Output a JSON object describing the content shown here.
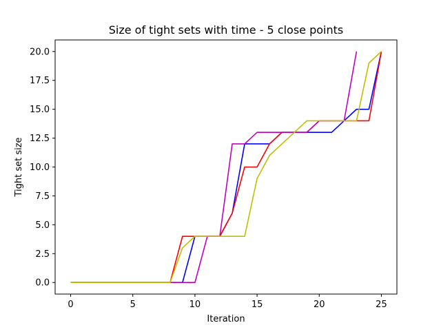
{
  "chart_data": {
    "type": "line",
    "title": "Size of tight sets with time - 5 close points",
    "xlabel": "Iteration",
    "ylabel": "Tight set size",
    "xlim": [
      -1.25,
      26.25
    ],
    "ylim": [
      -1.0,
      21.0
    ],
    "xticks": [
      0,
      5,
      10,
      15,
      20,
      25
    ],
    "xtick_labels": [
      "0",
      "5",
      "10",
      "15",
      "20",
      "25"
    ],
    "yticks": [
      0.0,
      2.5,
      5.0,
      7.5,
      10.0,
      12.5,
      15.0,
      17.5,
      20.0
    ],
    "ytick_labels": [
      "0.0",
      "2.5",
      "5.0",
      "7.5",
      "10.0",
      "12.5",
      "15.0",
      "17.5",
      "20.0"
    ],
    "grid": false,
    "legend": false,
    "series": [
      {
        "color": "#0000ff",
        "x": [
          0,
          1,
          2,
          3,
          4,
          5,
          6,
          7,
          8,
          9,
          10,
          11,
          12,
          13,
          14,
          15,
          16,
          17,
          18,
          19,
          20,
          21,
          22,
          23,
          24,
          25
        ],
        "y": [
          0,
          0,
          0,
          0,
          0,
          0,
          0,
          0,
          0,
          0,
          4,
          4,
          4,
          6,
          12,
          12,
          12,
          13,
          13,
          13,
          13,
          13,
          14,
          15,
          15,
          20
        ]
      },
      {
        "color": "#ff0000",
        "x": [
          0,
          1,
          2,
          3,
          4,
          5,
          6,
          7,
          8,
          9,
          10,
          11,
          12,
          13,
          14,
          15,
          16,
          17,
          18,
          19,
          20,
          21,
          22,
          23,
          24,
          25
        ],
        "y": [
          0,
          0,
          0,
          0,
          0,
          0,
          0,
          0,
          0,
          4,
          4,
          4,
          4,
          6,
          10,
          10,
          12,
          13,
          13,
          13,
          14,
          14,
          14,
          14,
          14,
          20
        ]
      },
      {
        "color": "#bf00bf",
        "x": [
          0,
          1,
          2,
          3,
          4,
          5,
          6,
          7,
          8,
          9,
          10,
          11,
          12,
          13,
          14,
          15,
          16,
          17,
          18,
          19,
          20,
          21,
          22,
          23
        ],
        "y": [
          0,
          0,
          0,
          0,
          0,
          0,
          0,
          0,
          0,
          0,
          0,
          4,
          4,
          12,
          12,
          13,
          13,
          13,
          13,
          13,
          14,
          14,
          14,
          20
        ]
      },
      {
        "color": "#bfbf00",
        "x": [
          0,
          1,
          2,
          3,
          4,
          5,
          6,
          7,
          8,
          9,
          10,
          11,
          12,
          13,
          14,
          15,
          16,
          17,
          18,
          19,
          20,
          21,
          22,
          23,
          24,
          25
        ],
        "y": [
          0,
          0,
          0,
          0,
          0,
          0,
          0,
          0,
          0,
          3,
          4,
          4,
          4,
          4,
          4,
          9,
          11,
          12,
          13,
          14,
          14,
          14,
          14,
          14,
          19,
          20
        ]
      }
    ]
  }
}
